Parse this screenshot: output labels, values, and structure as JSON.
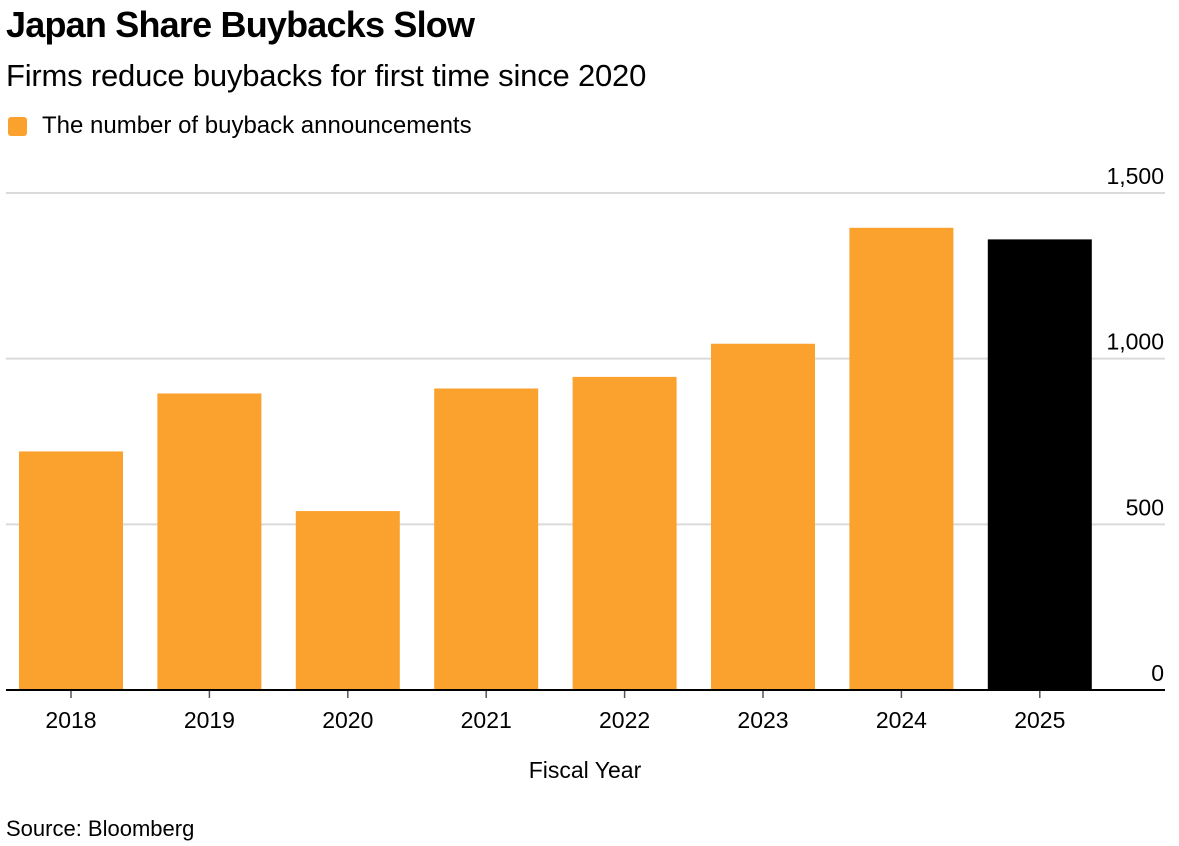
{
  "title": "Japan Share Buybacks Slow",
  "subtitle": "Firms reduce buybacks for first time since 2020",
  "source": "Source: Bloomberg",
  "colors": {
    "bar": "#FBA12E",
    "highlight": "#000000",
    "gridline": "#DADADA",
    "baseline": "#000000"
  },
  "chart_data": {
    "type": "bar",
    "title": "Japan Share Buybacks Slow",
    "subtitle": "Firms reduce buybacks for first time since 2020",
    "xlabel": "Fiscal Year",
    "ylabel": "",
    "categories": [
      "2018",
      "2019",
      "2020",
      "2021",
      "2022",
      "2023",
      "2024",
      "2025"
    ],
    "series": [
      {
        "name": "The number of buyback announcements",
        "values": [
          720,
          895,
          540,
          910,
          945,
          1045,
          1395,
          1360
        ]
      }
    ],
    "highlight_category": "2025",
    "ylim": [
      0,
      1500
    ],
    "yticks": [
      0,
      500,
      1000,
      1500
    ],
    "ytick_labels": [
      "0",
      "500",
      "1,000",
      "1,500"
    ],
    "grid": true,
    "y_axis_side": "right",
    "legend_position": "top-left"
  }
}
